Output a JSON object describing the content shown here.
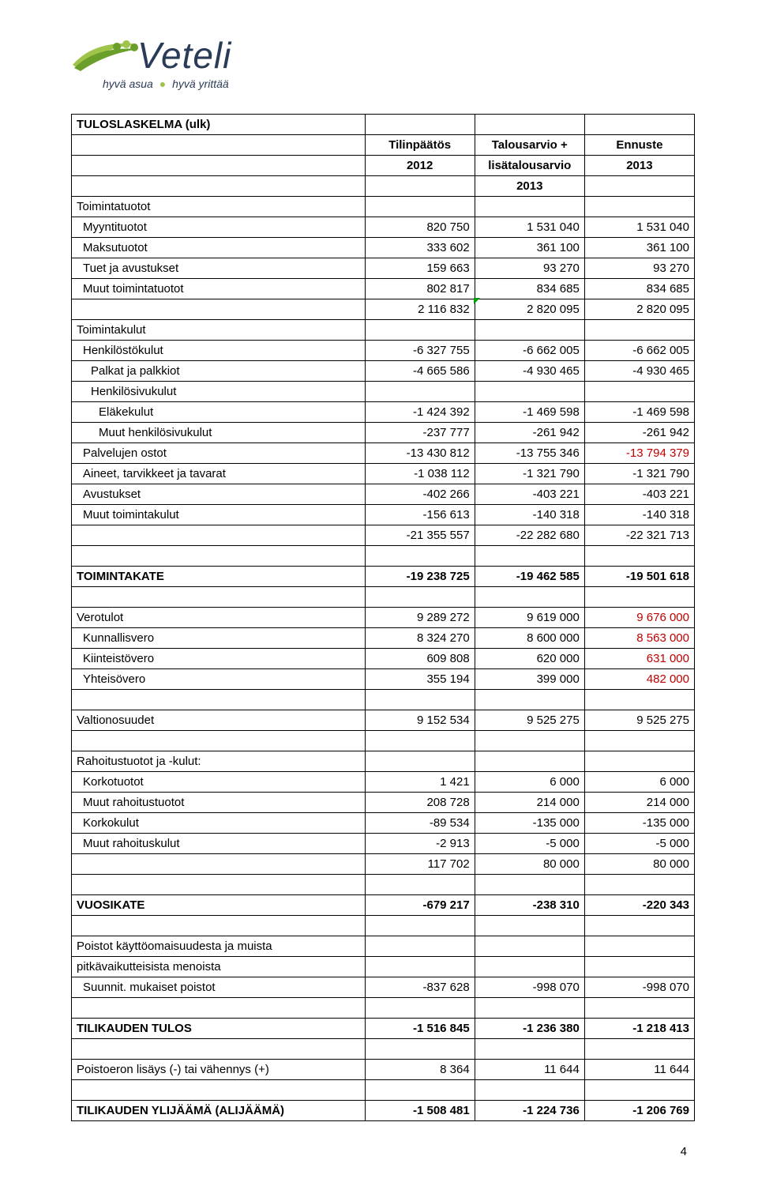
{
  "logo": {
    "name": "Veteli",
    "tagline_a": "hyvä asua",
    "tagline_b": "hyvä yrittää"
  },
  "page_number": "4",
  "table": {
    "rows": [
      {
        "c1": "TULOSLASKELMA (ulk)",
        "c2": "",
        "c3": "",
        "c4": "",
        "s": {
          "c1": "bold"
        }
      },
      {
        "c1": "",
        "c2": "Tilinpäätös",
        "c3": "Talousarvio +",
        "c4": "Ennuste",
        "s": {
          "c2": "bold center",
          "c3": "bold center",
          "c4": "bold center"
        }
      },
      {
        "c1": "",
        "c2": "2012",
        "c3": "lisätalousarvio",
        "c4": "2013",
        "s": {
          "c2": "bold center",
          "c3": "bold center",
          "c4": "bold center"
        }
      },
      {
        "c1": "",
        "c2": "",
        "c3": "2013",
        "c4": "",
        "s": {
          "c3": "bold center"
        }
      },
      {
        "c1": "Toimintatuotot",
        "c2": "",
        "c3": "",
        "c4": ""
      },
      {
        "c1": "Myyntituotot",
        "c2": "820 750",
        "c3": "1 531 040",
        "c4": "1 531 040",
        "s": {
          "c1": "indent1"
        }
      },
      {
        "c1": "Maksutuotot",
        "c2": "333 602",
        "c3": "361 100",
        "c4": "361 100",
        "s": {
          "c1": "indent1"
        }
      },
      {
        "c1": "Tuet ja avustukset",
        "c2": "159 663",
        "c3": "93 270",
        "c4": "93 270",
        "s": {
          "c1": "indent1"
        }
      },
      {
        "c1": "Muut toimintatuotot",
        "c2": "802 817",
        "c3": "834 685",
        "c4": "834 685",
        "s": {
          "c1": "indent1"
        }
      },
      {
        "c1": "",
        "c2": "2 116 832",
        "c3": "2 820 095",
        "c4": "2 820 095",
        "s": {
          "c3": "greenmark"
        }
      },
      {
        "c1": "Toimintakulut",
        "c2": "",
        "c3": "",
        "c4": ""
      },
      {
        "c1": "Henkilöstökulut",
        "c2": "-6 327 755",
        "c3": "-6 662 005",
        "c4": "-6 662 005",
        "s": {
          "c1": "indent1"
        }
      },
      {
        "c1": "Palkat ja palkkiot",
        "c2": "-4 665 586",
        "c3": "-4 930 465",
        "c4": "-4 930 465",
        "s": {
          "c1": "indent2"
        }
      },
      {
        "c1": "Henkilösivukulut",
        "c2": "",
        "c3": "",
        "c4": "",
        "s": {
          "c1": "indent2"
        }
      },
      {
        "c1": "Eläkekulut",
        "c2": "-1 424 392",
        "c3": "-1 469 598",
        "c4": "-1 469 598",
        "s": {
          "c1": "indent3"
        }
      },
      {
        "c1": "Muut henkilösivukulut",
        "c2": "-237 777",
        "c3": "-261 942",
        "c4": "-261 942",
        "s": {
          "c1": "indent3"
        }
      },
      {
        "c1": "Palvelujen ostot",
        "c2": "-13 430 812",
        "c3": "-13 755 346",
        "c4": "-13 794 379",
        "s": {
          "c1": "indent1",
          "c4": "red"
        }
      },
      {
        "c1": "Aineet, tarvikkeet ja tavarat",
        "c2": "-1 038 112",
        "c3": "-1 321 790",
        "c4": "-1 321 790",
        "s": {
          "c1": "indent1"
        }
      },
      {
        "c1": "Avustukset",
        "c2": "-402 266",
        "c3": "-403 221",
        "c4": "-403 221",
        "s": {
          "c1": "indent1"
        }
      },
      {
        "c1": "Muut toimintakulut",
        "c2": "-156 613",
        "c3": "-140 318",
        "c4": "-140 318",
        "s": {
          "c1": "indent1"
        }
      },
      {
        "c1": "",
        "c2": "-21 355 557",
        "c3": "-22 282 680",
        "c4": "-22 321 713"
      },
      {
        "c1": "",
        "c2": "",
        "c3": "",
        "c4": ""
      },
      {
        "c1": "TOIMINTAKATE",
        "c2": "-19 238 725",
        "c3": "-19 462 585",
        "c4": "-19 501 618",
        "s": {
          "c1": "bold",
          "c2": "bold",
          "c3": "bold",
          "c4": "bold"
        }
      },
      {
        "c1": "",
        "c2": "",
        "c3": "",
        "c4": ""
      },
      {
        "c1": "Verotulot",
        "c2": "9 289 272",
        "c3": "9 619 000",
        "c4": "9 676 000",
        "s": {
          "c4": "red"
        }
      },
      {
        "c1": "Kunnallisvero",
        "c2": "8 324 270",
        "c3": "8 600 000",
        "c4": "8 563 000",
        "s": {
          "c1": "indent1",
          "c4": "red"
        }
      },
      {
        "c1": "Kiinteistövero",
        "c2": "609 808",
        "c3": "620 000",
        "c4": "631 000",
        "s": {
          "c1": "indent1",
          "c4": "red"
        }
      },
      {
        "c1": "Yhteisövero",
        "c2": "355 194",
        "c3": "399 000",
        "c4": "482 000",
        "s": {
          "c1": "indent1",
          "c4": "red"
        }
      },
      {
        "c1": "",
        "c2": "",
        "c3": "",
        "c4": ""
      },
      {
        "c1": "Valtionosuudet",
        "c2": "9 152 534",
        "c3": "9 525 275",
        "c4": "9 525 275"
      },
      {
        "c1": "",
        "c2": "",
        "c3": "",
        "c4": ""
      },
      {
        "c1": "Rahoitustuotot ja -kulut:",
        "c2": "",
        "c3": "",
        "c4": ""
      },
      {
        "c1": "Korkotuotot",
        "c2": "1 421",
        "c3": "6 000",
        "c4": "6 000",
        "s": {
          "c1": "indent1"
        }
      },
      {
        "c1": "Muut rahoitustuotot",
        "c2": "208 728",
        "c3": "214 000",
        "c4": "214 000",
        "s": {
          "c1": "indent1"
        }
      },
      {
        "c1": "Korkokulut",
        "c2": "-89 534",
        "c3": "-135 000",
        "c4": "-135 000",
        "s": {
          "c1": "indent1"
        }
      },
      {
        "c1": "Muut rahoituskulut",
        "c2": "-2 913",
        "c3": "-5 000",
        "c4": "-5 000",
        "s": {
          "c1": "indent1"
        }
      },
      {
        "c1": "",
        "c2": "117 702",
        "c3": "80 000",
        "c4": "80 000"
      },
      {
        "c1": "",
        "c2": "",
        "c3": "",
        "c4": ""
      },
      {
        "c1": "VUOSIKATE",
        "c2": "-679 217",
        "c3": "-238 310",
        "c4": "-220 343",
        "s": {
          "c1": "bold",
          "c2": "bold",
          "c3": "bold",
          "c4": "bold"
        }
      },
      {
        "c1": "",
        "c2": "",
        "c3": "",
        "c4": ""
      },
      {
        "c1": "Poistot käyttöomaisuudesta ja muista",
        "c2": "",
        "c3": "",
        "c4": ""
      },
      {
        "c1": "pitkävaikutteisista menoista",
        "c2": "",
        "c3": "",
        "c4": ""
      },
      {
        "c1": "Suunnit. mukaiset poistot",
        "c2": "-837 628",
        "c3": "-998 070",
        "c4": "-998 070",
        "s": {
          "c1": "indent1"
        }
      },
      {
        "c1": "",
        "c2": "",
        "c3": "",
        "c4": ""
      },
      {
        "c1": "TILIKAUDEN TULOS",
        "c2": "-1 516 845",
        "c3": "-1 236 380",
        "c4": "-1 218 413",
        "s": {
          "c1": "bold",
          "c2": "bold",
          "c3": "bold",
          "c4": "bold"
        }
      },
      {
        "c1": "",
        "c2": "",
        "c3": "",
        "c4": ""
      },
      {
        "c1": "Poistoeron lisäys (-) tai vähennys (+)",
        "c2": "8 364",
        "c3": "11 644",
        "c4": "11 644"
      },
      {
        "c1": "",
        "c2": "",
        "c3": "",
        "c4": ""
      },
      {
        "c1": "TILIKAUDEN YLIJÄÄMÄ (ALIJÄÄMÄ)",
        "c2": "-1 508 481",
        "c3": "-1 224 736",
        "c4": "-1 206 769",
        "s": {
          "c1": "bold",
          "c2": "bold",
          "c3": "bold",
          "c4": "bold"
        }
      }
    ]
  }
}
